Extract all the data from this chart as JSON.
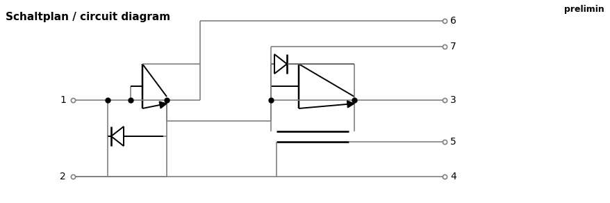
{
  "title": "Schaltplan / circuit diagram",
  "prelim_text": "prelimin",
  "wire_color": "#808080",
  "black": "#000000",
  "white": "#ffffff",
  "bg_color": "#ffffff"
}
